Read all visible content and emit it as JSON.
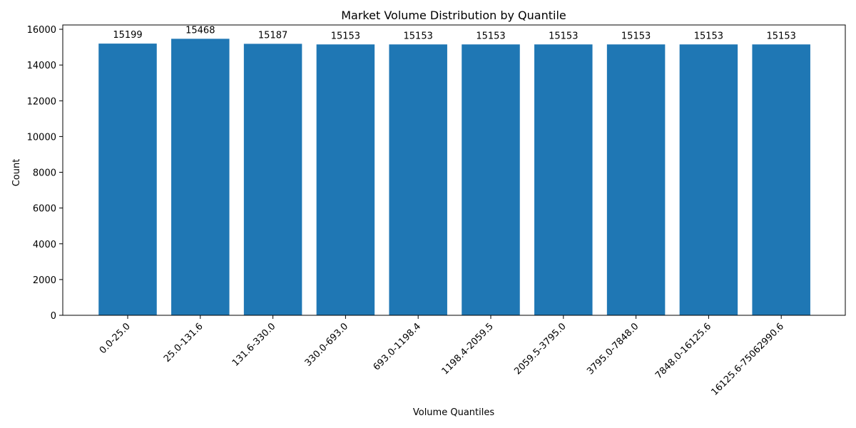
{
  "chart_data": {
    "type": "bar",
    "title": "Market Volume Distribution by Quantile",
    "xlabel": "Volume Quantiles",
    "ylabel": "Count",
    "categories": [
      "0.0-25.0",
      "25.0-131.6",
      "131.6-330.0",
      "330.0-693.0",
      "693.0-1198.4",
      "1198.4-2059.5",
      "2059.5-3795.0",
      "3795.0-7848.0",
      "7848.0-16125.6",
      "16125.6-75062990.6"
    ],
    "values": [
      15199,
      15468,
      15187,
      15153,
      15153,
      15153,
      15153,
      15153,
      15153,
      15153
    ],
    "data_labels": [
      "15199",
      "15468",
      "15187",
      "15153",
      "15153",
      "15153",
      "15153",
      "15153",
      "15153",
      "15153"
    ],
    "yticks": [
      0,
      2000,
      4000,
      6000,
      8000,
      10000,
      12000,
      14000,
      16000
    ],
    "ytick_labels": [
      "0",
      "2000",
      "4000",
      "6000",
      "8000",
      "10000",
      "12000",
      "14000",
      "16000"
    ],
    "ylim": [
      0,
      16241
    ],
    "bar_color": "#1f77b4",
    "grid": false,
    "legend": false
  }
}
